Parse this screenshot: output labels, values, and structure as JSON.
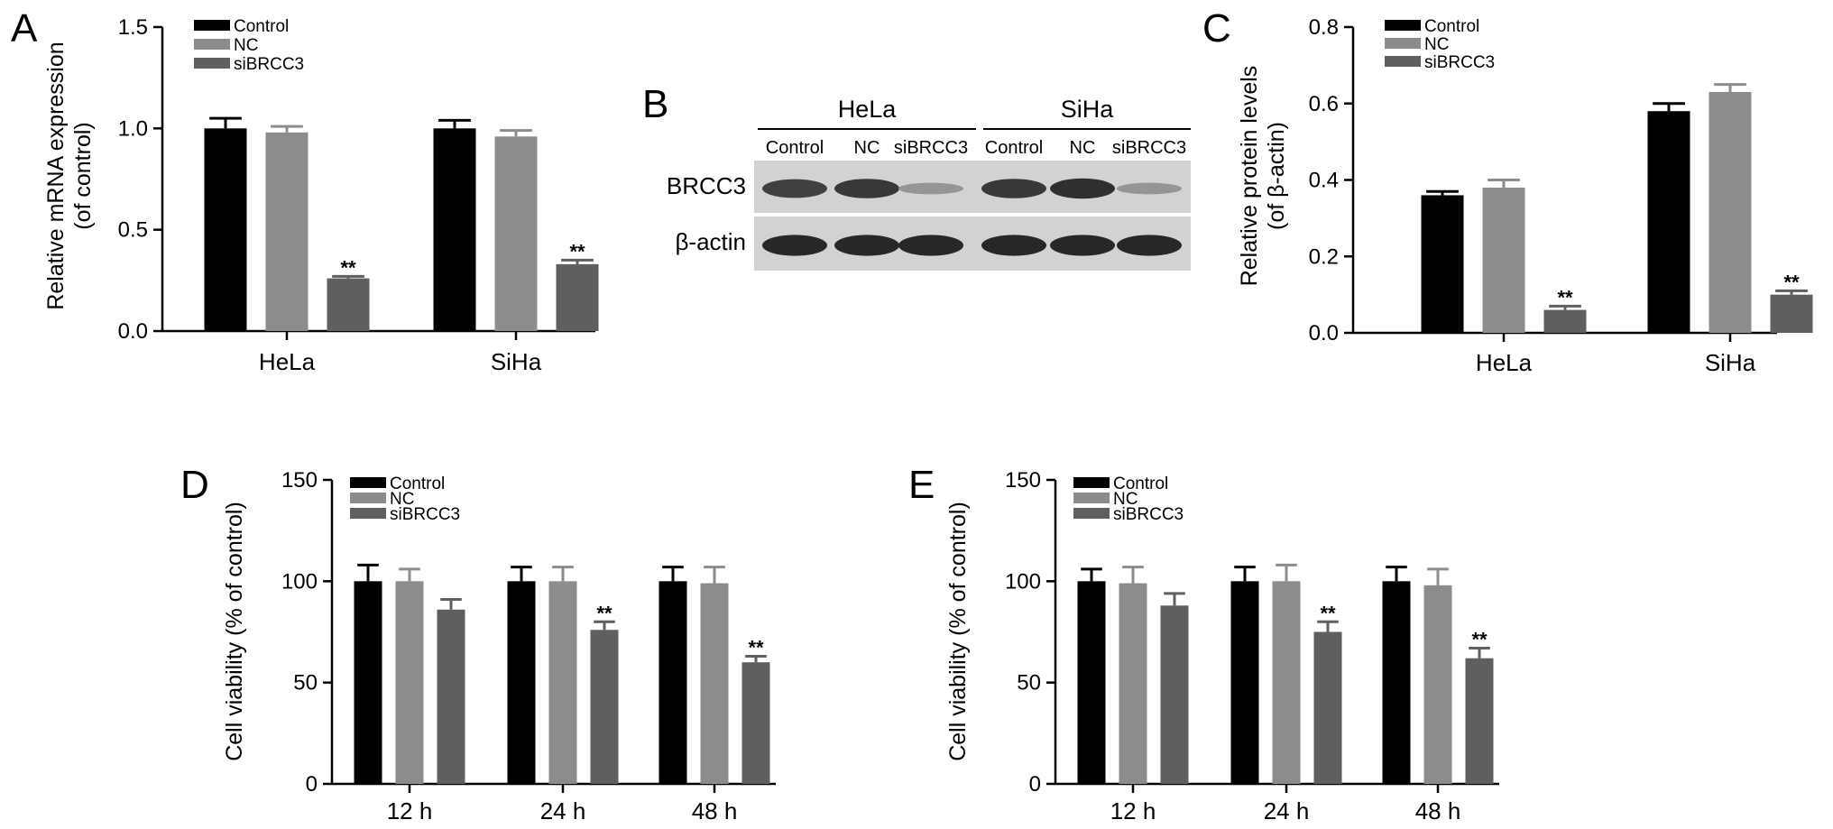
{
  "series_colors": [
    "#000000",
    "#8c8c8c",
    "#5f5f5f"
  ],
  "blot": {
    "letter": "B",
    "groups": [
      "HeLa",
      "SiHa"
    ],
    "lanes": [
      "Control",
      "NC",
      "siBRCC3",
      "Control",
      "NC",
      "siBRCC3"
    ],
    "rows": [
      "BRCC3",
      "β-actin"
    ],
    "band_intensity": {
      "BRCC3": [
        0.8,
        0.85,
        0.3,
        0.85,
        0.9,
        0.3
      ],
      "β-actin": [
        0.95,
        0.95,
        0.95,
        0.95,
        0.95,
        0.95
      ]
    }
  },
  "chart_data": [
    {
      "letter": "A",
      "type": "bar",
      "categories": [
        "HeLa",
        "SiHa"
      ],
      "series": [
        {
          "name": "Control",
          "values": [
            1.0,
            1.0
          ],
          "errors": [
            0.05,
            0.04
          ]
        },
        {
          "name": "NC",
          "values": [
            0.98,
            0.96
          ],
          "errors": [
            0.03,
            0.03
          ]
        },
        {
          "name": "siBRCC3",
          "values": [
            0.26,
            0.33
          ],
          "errors": [
            0.01,
            0.02
          ]
        }
      ],
      "annotations": [
        {
          "category": 0,
          "series": 2,
          "text": "**"
        },
        {
          "category": 1,
          "series": 2,
          "text": "**"
        }
      ],
      "ylabel": [
        "Relative mRNA expression",
        "(of control)"
      ],
      "ylim": [
        0,
        1.5
      ],
      "yticks": [
        0.0,
        0.5,
        1.0,
        1.5
      ],
      "ytick_labels": [
        "0.0",
        "0.5",
        "1.0",
        "1.5"
      ],
      "legend_position": "top-left"
    },
    {
      "letter": "C",
      "type": "bar",
      "categories": [
        "HeLa",
        "SiHa"
      ],
      "series": [
        {
          "name": "Control",
          "values": [
            0.36,
            0.58
          ],
          "errors": [
            0.01,
            0.02
          ]
        },
        {
          "name": "NC",
          "values": [
            0.38,
            0.63
          ],
          "errors": [
            0.02,
            0.02
          ]
        },
        {
          "name": "siBRCC3",
          "values": [
            0.06,
            0.1
          ],
          "errors": [
            0.01,
            0.01
          ]
        }
      ],
      "annotations": [
        {
          "category": 0,
          "series": 2,
          "text": "**"
        },
        {
          "category": 1,
          "series": 2,
          "text": "**"
        }
      ],
      "ylabel": [
        "Relative protein levels",
        "(of β-actin)"
      ],
      "ylim": [
        0,
        0.8
      ],
      "yticks": [
        0.0,
        0.2,
        0.4,
        0.6,
        0.8
      ],
      "ytick_labels": [
        "0.0",
        "0.2",
        "0.4",
        "0.6",
        "0.8"
      ],
      "legend_position": "top-left"
    },
    {
      "letter": "D",
      "type": "bar",
      "categories": [
        "12 h",
        "24 h",
        "48 h"
      ],
      "series": [
        {
          "name": "Control",
          "values": [
            100,
            100,
            100
          ],
          "errors": [
            8,
            7,
            7
          ]
        },
        {
          "name": "NC",
          "values": [
            100,
            100,
            99
          ],
          "errors": [
            6,
            7,
            8
          ]
        },
        {
          "name": "siBRCC3",
          "values": [
            86,
            76,
            60
          ],
          "errors": [
            5,
            4,
            3
          ]
        }
      ],
      "annotations": [
        {
          "category": 1,
          "series": 2,
          "text": "**"
        },
        {
          "category": 2,
          "series": 2,
          "text": "**"
        }
      ],
      "ylabel": [
        "Cell viability (% of control)"
      ],
      "ylim": [
        0,
        150
      ],
      "yticks": [
        0,
        50,
        100,
        150
      ],
      "ytick_labels": [
        "0",
        "50",
        "100",
        "150"
      ],
      "legend_position": "top-left"
    },
    {
      "letter": "E",
      "type": "bar",
      "categories": [
        "12 h",
        "24 h",
        "48 h"
      ],
      "series": [
        {
          "name": "Control",
          "values": [
            100,
            100,
            100
          ],
          "errors": [
            6,
            7,
            7
          ]
        },
        {
          "name": "NC",
          "values": [
            99,
            100,
            98
          ],
          "errors": [
            8,
            8,
            8
          ]
        },
        {
          "name": "siBRCC3",
          "values": [
            88,
            75,
            62
          ],
          "errors": [
            6,
            5,
            5
          ]
        }
      ],
      "annotations": [
        {
          "category": 1,
          "series": 2,
          "text": "**"
        },
        {
          "category": 2,
          "series": 2,
          "text": "**"
        }
      ],
      "ylabel": [
        "Cell viability (% of control)"
      ],
      "ylim": [
        0,
        150
      ],
      "yticks": [
        0,
        50,
        100,
        150
      ],
      "ytick_labels": [
        "0",
        "50",
        "100",
        "150"
      ],
      "legend_position": "top-left"
    }
  ]
}
